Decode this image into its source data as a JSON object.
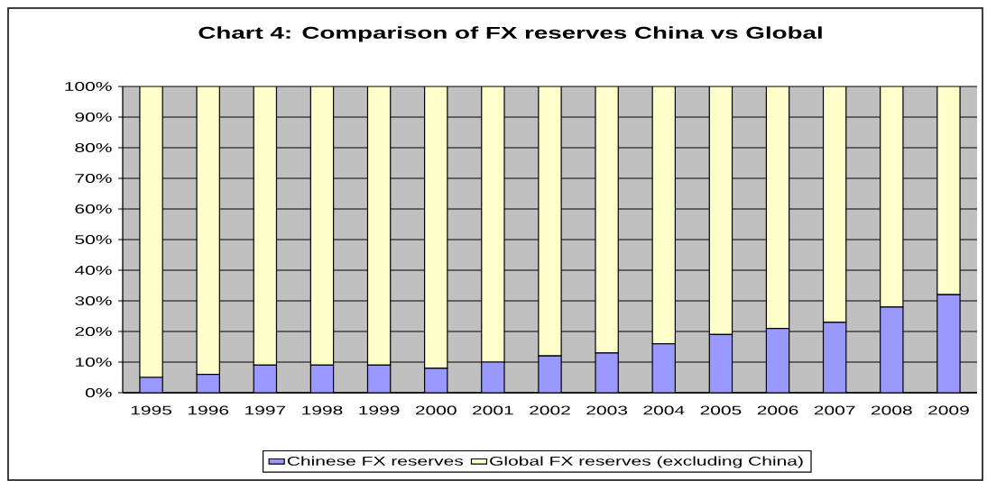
{
  "chart_data": {
    "type": "bar",
    "stacked": true,
    "title": "Chart 4: Comparison of FX reserves China vs Global",
    "categories": [
      "1995",
      "1996",
      "1997",
      "1998",
      "1999",
      "2000",
      "2001",
      "2002",
      "2003",
      "2004",
      "2005",
      "2006",
      "2007",
      "2008",
      "2009"
    ],
    "series": [
      {
        "name": "Chinese FX reserves",
        "color": "#9999ff",
        "values": [
          5,
          6,
          9,
          9,
          9,
          8,
          10,
          12,
          13,
          16,
          19,
          21,
          23,
          28,
          32
        ]
      },
      {
        "name": "Global FX reserves (excluding China)",
        "color": "#ffffcc",
        "values": [
          95,
          94,
          91,
          91,
          91,
          92,
          90,
          88,
          87,
          84,
          81,
          79,
          77,
          72,
          68
        ]
      }
    ],
    "ylim": [
      0,
      100
    ],
    "yticks": [
      {
        "value": 0,
        "label": "0%"
      },
      {
        "value": 10,
        "label": "10%"
      },
      {
        "value": 20,
        "label": "20%"
      },
      {
        "value": 30,
        "label": "30%"
      },
      {
        "value": 40,
        "label": "40%"
      },
      {
        "value": 50,
        "label": "50%"
      },
      {
        "value": 60,
        "label": "60%"
      },
      {
        "value": 70,
        "label": "70%"
      },
      {
        "value": 80,
        "label": "80%"
      },
      {
        "value": 90,
        "label": "90%"
      },
      {
        "value": 100,
        "label": "100%"
      }
    ],
    "grid": "y",
    "legend": "bottom"
  }
}
